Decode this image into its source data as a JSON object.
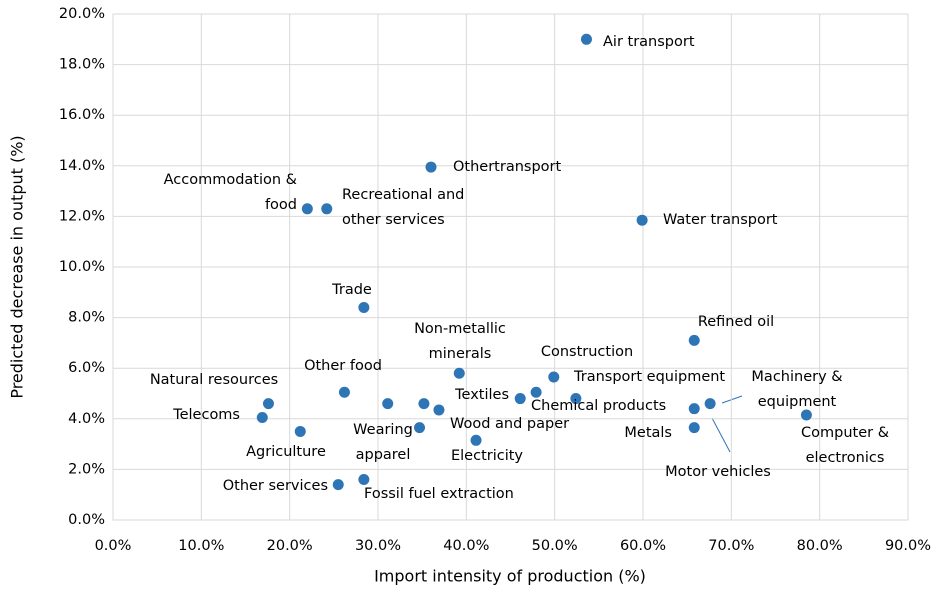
{
  "chart_data": {
    "type": "scatter",
    "xlabel": "Import intensity of production (%)",
    "ylabel": "Predicted decrease in output (%)",
    "color": "#2e75b6",
    "grid": true,
    "x": [
      53.6,
      36.0,
      22.0,
      24.2,
      59.9,
      28.4,
      65.8,
      39.2,
      49.9,
      26.2,
      17.6,
      31.1,
      35.2,
      36.9,
      46.1,
      47.9,
      52.4,
      65.8,
      67.6,
      78.5,
      16.9,
      65.8,
      34.7,
      21.2,
      41.1,
      28.4,
      25.5
    ],
    "values": [
      19.0,
      13.95,
      12.3,
      12.3,
      11.85,
      8.4,
      7.1,
      5.8,
      5.65,
      5.05,
      4.6,
      4.6,
      4.6,
      4.35,
      4.8,
      5.05,
      4.8,
      4.4,
      4.6,
      4.15,
      4.05,
      3.65,
      3.65,
      3.5,
      3.15,
      1.6,
      1.4
    ],
    "point_labels": [
      "Air transport",
      "Othertransport",
      "Accommodation & food",
      "Recreational and other services",
      "Water transport",
      "Trade",
      "Refined oil",
      "Non-metallic minerals",
      "Construction",
      "Other food",
      "Natural resources",
      null,
      null,
      "Wood and paper",
      "Textiles",
      "Transport equipment",
      "Chemical products",
      "Motor vehicles",
      "Machinery & equipment",
      "Computer & electronics",
      "Telecoms",
      "Metals",
      "Wearing apparel",
      "Agriculture",
      "Electricity",
      "Fossil fuel extraction",
      "Other services"
    ],
    "xlim": [
      0,
      90
    ],
    "xticks": [
      {
        "value": 0,
        "label": "0.0%"
      },
      {
        "value": 10,
        "label": "10.0%"
      },
      {
        "value": 20,
        "label": "20.0%"
      },
      {
        "value": 30,
        "label": "30.0%"
      },
      {
        "value": 40,
        "label": "40.0%"
      },
      {
        "value": 50,
        "label": "50.0%"
      },
      {
        "value": 60,
        "label": "60.0%"
      },
      {
        "value": 70,
        "label": "70.0%"
      },
      {
        "value": 80,
        "label": "80.0%"
      },
      {
        "value": 90,
        "label": "90.0%"
      }
    ],
    "ylim": [
      0,
      20
    ],
    "yticks": [
      {
        "value": 0,
        "label": "0.0%"
      },
      {
        "value": 2,
        "label": "2.0%"
      },
      {
        "value": 4,
        "label": "4.0%"
      },
      {
        "value": 6,
        "label": "6.0%"
      },
      {
        "value": 8,
        "label": "8.0%"
      },
      {
        "value": 10,
        "label": "10.0%"
      },
      {
        "value": 12,
        "label": "12.0%"
      },
      {
        "value": 14,
        "label": "14.0%"
      },
      {
        "value": 16,
        "label": "16.0%"
      },
      {
        "value": 18,
        "label": "18.0%"
      },
      {
        "value": 20,
        "label": "20.0%"
      }
    ]
  }
}
